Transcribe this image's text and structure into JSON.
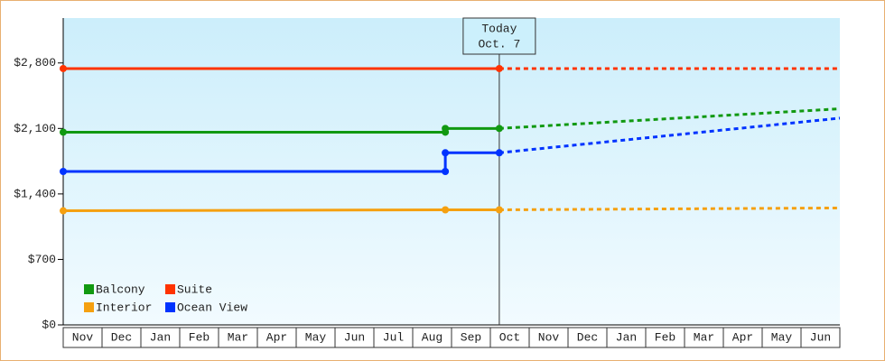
{
  "chart_data": {
    "type": "line",
    "categories": [
      "Nov",
      "Dec",
      "Jan",
      "Feb",
      "Mar",
      "Apr",
      "May",
      "Jun",
      "Jul",
      "Aug",
      "Sep",
      "Oct",
      "Nov",
      "Dec",
      "Jan",
      "Feb",
      "Mar",
      "Apr",
      "May",
      "Jun"
    ],
    "xlim": [
      0,
      20
    ],
    "ylim": [
      0,
      3280
    ],
    "yticks": [
      {
        "value": 0,
        "label": "$0"
      },
      {
        "value": 700,
        "label": "$700"
      },
      {
        "value": 1400,
        "label": "$1,400"
      },
      {
        "value": 2100,
        "label": "$2,100"
      },
      {
        "value": 2800,
        "label": "$2,800"
      }
    ],
    "annotation": {
      "x": 11.23,
      "lines": [
        "Today",
        "Oct. 7"
      ]
    },
    "series": [
      {
        "name": "Balcony",
        "color": "#119911",
        "x": [
          0,
          9.84,
          9.84,
          11.23
        ],
        "values": [
          2060,
          2060,
          2100,
          2100
        ],
        "forecast_x": [
          11.23,
          20
        ],
        "forecast_values": [
          2100,
          2310
        ]
      },
      {
        "name": "Suite",
        "color": "#ff3300",
        "x": [
          0,
          11.23
        ],
        "values": [
          2740,
          2740
        ],
        "forecast_x": [
          11.23,
          20
        ],
        "forecast_values": [
          2740,
          2740
        ]
      },
      {
        "name": "Interior",
        "color": "#f5a010",
        "x": [
          0,
          9.84,
          11.23
        ],
        "values": [
          1220,
          1230,
          1230
        ],
        "forecast_x": [
          11.23,
          20
        ],
        "forecast_values": [
          1230,
          1250
        ]
      },
      {
        "name": "Ocean View",
        "color": "#0033ff",
        "x": [
          0,
          9.84,
          9.84,
          11.23
        ],
        "values": [
          1640,
          1640,
          1840,
          1840
        ],
        "forecast_x": [
          11.23,
          20
        ],
        "forecast_values": [
          1840,
          2210
        ]
      }
    ]
  }
}
